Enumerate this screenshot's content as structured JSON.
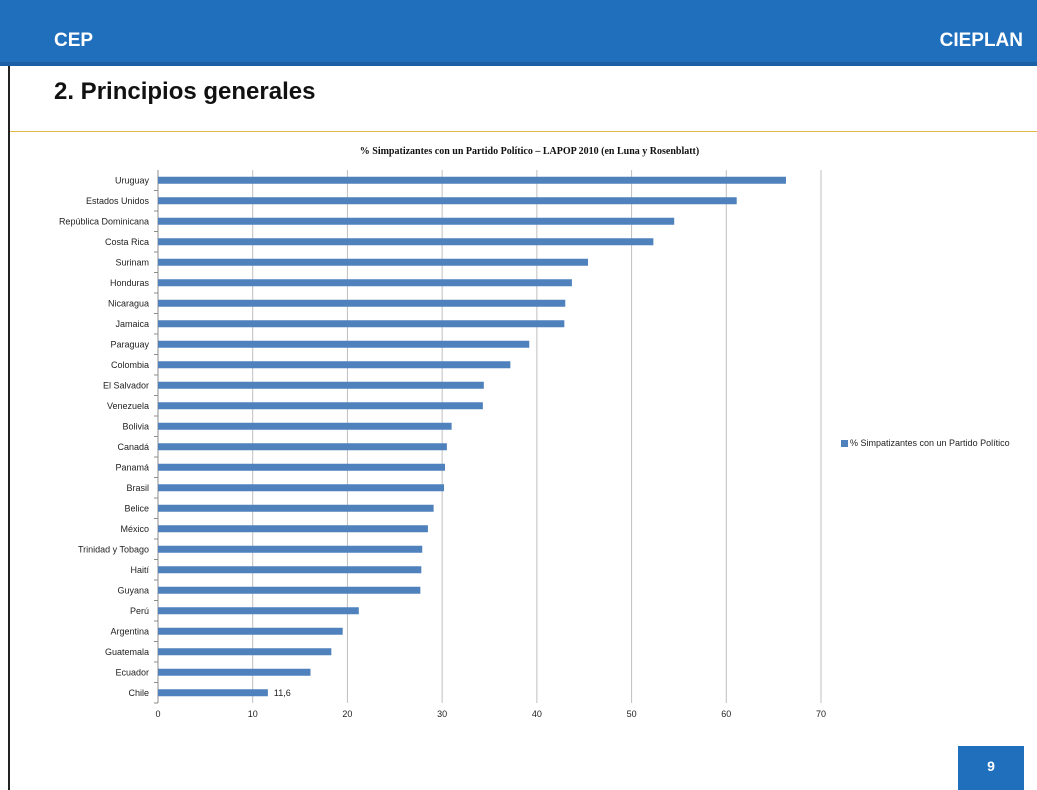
{
  "header": {
    "left_brand": "CEP",
    "right_brand": "CIEPLAN"
  },
  "slide": {
    "title": "2. Principios generales",
    "page_number": "9"
  },
  "colors": {
    "header_blue": "#1f6fbd",
    "bar_blue": "#4f81bd",
    "rule_gold": "#e0b84a"
  },
  "chart_data": {
    "type": "bar",
    "orientation": "horizontal",
    "title": "% Simpatizantes con un Partido Político – LAPOP 2010 (en Luna y Rosenblatt)",
    "categories": [
      "Uruguay",
      "Estados Unidos",
      "República Dominicana",
      "Costa Rica",
      "Surinam",
      "Honduras",
      "Nicaragua",
      "Jamaica",
      "Paraguay",
      "Colombia",
      "El Salvador",
      "Venezuela",
      "Bolivia",
      "Canadá",
      "Panamá",
      "Brasil",
      "Belice",
      "México",
      "Trinidad y Tobago",
      "Haití",
      "Guyana",
      "Perú",
      "Argentina",
      "Guatemala",
      "Ecuador",
      "Chile"
    ],
    "series": [
      {
        "name": "% Simpatizantes con un Partido Político",
        "values": [
          66.3,
          61.1,
          54.5,
          52.3,
          45.4,
          43.7,
          43.0,
          42.9,
          39.2,
          37.2,
          34.4,
          34.3,
          31.0,
          30.5,
          30.3,
          30.2,
          29.1,
          28.5,
          27.9,
          27.8,
          27.7,
          21.2,
          19.5,
          18.3,
          16.1,
          11.6
        ]
      }
    ],
    "data_labels": [
      {
        "category": "Chile",
        "text": "11,6"
      }
    ],
    "xlim": [
      0,
      70
    ],
    "xticks": [
      0,
      10,
      20,
      30,
      40,
      50,
      60,
      70
    ],
    "grid": "vertical",
    "legend_position": "right"
  }
}
